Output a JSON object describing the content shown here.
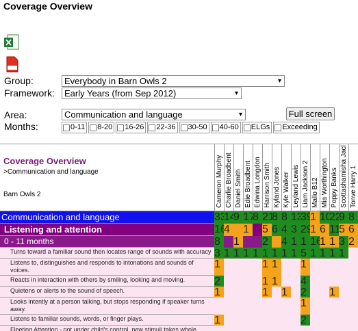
{
  "header": {
    "title": "Coverage Overview"
  },
  "form": {
    "group_label": "Group:",
    "group_value": "Everybody in Barn Owls 2",
    "framework_label": "Framework:",
    "framework_value": "Early Years (from Sep 2012)",
    "area_label": "Area:",
    "area_value": "Communication and language",
    "full_screen": "Full screen",
    "months_label": "Months:",
    "months": [
      "0-11",
      "8-20",
      "16-26",
      "22-36",
      "30-50",
      "40-60",
      "ELGs",
      "Exceeding"
    ]
  },
  "report": {
    "title": "Coverage Overview",
    "breadcrumb": ">Communication and language",
    "group": "Barn Owls 2",
    "children": [
      "Cameron Murphy",
      "Charlie Broadbent",
      "Daniel Smith",
      "Edie Broadbent",
      "Edwina Longdon",
      "Harrison Smith",
      "Kyland Jones",
      "Kyle Walker",
      "Leyland Lewis",
      "Liam Jackson 2",
      "Mallo B12",
      "Mia Worthington",
      "Poppy Banks",
      "Scottashamisha Jacks",
      "Tonve Harry 1"
    ],
    "rows": [
      {
        "label": "Communication and language",
        "style": "area",
        "background": "#1010f0",
        "values": [
          33,
          14,
          9,
          17,
          8,
          21,
          8,
          8,
          13,
          39,
          1,
          10,
          22,
          9,
          8
        ],
        "colors": [
          "#1e8c1e",
          "#1e8c1e",
          "#1e8c1e",
          "#1e8c1e",
          "#1e8c1e",
          "#1e8c1e",
          "#1e8c1e",
          "#1e8c1e",
          "#1e8c1e",
          "#1e8c1e",
          "#f5a31a",
          "#1e8c1e",
          "#1e8c1e",
          "#1e8c1e",
          "#1e8c1e"
        ]
      },
      {
        "label": "Listening and attention",
        "style": "aspect",
        "background": "#800080",
        "values": [
          16,
          4,
          null,
          1,
          null,
          5,
          6,
          4,
          3,
          29,
          1,
          6,
          11,
          5,
          6
        ],
        "colors": [
          "#1e8c1e",
          "#f5a31a",
          "#f5a31a",
          "#f5a31a",
          null,
          "#f5a31a",
          "#1e8c1e",
          "#1e8c1e",
          "#1e8c1e",
          "#1e8c1e",
          "#f5a31a",
          "#f5a31a",
          "#1e8c1e",
          "#f5a31a",
          "#f5a31a"
        ]
      },
      {
        "label": "0 - 11 months",
        "style": "band",
        "background": "#8a1a8a",
        "values": [
          8,
          null,
          1,
          null,
          null,
          2,
          null,
          4,
          1,
          1,
          16,
          1,
          1,
          3,
          2
        ],
        "colors": [
          "#1e8c1e",
          null,
          "#f5a31a",
          null,
          null,
          "#1e8c1e",
          "#f5a31a",
          "#1e8c1e",
          "#1e8c1e",
          "#1e8c1e",
          "#1e8c1e",
          "#f5a31a",
          "#f5a31a",
          "#1e8c1e",
          "#f5a31a"
        ]
      },
      {
        "label": "Turns toward a familiar sound then locates range of sounds with accuracy",
        "style": "statement",
        "background": "#fde4f1",
        "values": [
          3,
          1,
          1,
          1,
          1,
          1,
          1,
          1,
          1,
          5,
          1,
          1,
          1,
          1,
          null
        ],
        "colors": [
          "#1e8c1e",
          "#1e8c1e",
          "#1e8c1e",
          "#1e8c1e",
          "#1e8c1e",
          "#1e8c1e",
          "#1e8c1e",
          "#1e8c1e",
          "#1e8c1e",
          "#1e8c1e",
          "#1e8c1e",
          "#1e8c1e",
          "#1e8c1e",
          "#1e8c1e",
          null
        ]
      },
      {
        "label": "Listens to, distinguishes and responds to intonations and sounds of voices.",
        "style": "statement",
        "background": "#fde4f1",
        "values": [
          1,
          null,
          null,
          null,
          null,
          1,
          1,
          null,
          null,
          1,
          null,
          null,
          null,
          null,
          null
        ],
        "colors": [
          "#f5a31a",
          null,
          null,
          null,
          null,
          "#f5a31a",
          "#f5a31a",
          null,
          null,
          "#f5a31a",
          null,
          null,
          null,
          null,
          null
        ]
      },
      {
        "label": "Reacts in interaction with others by smiling, looking and moving.",
        "style": "statement",
        "background": "#fde4f1",
        "values": [
          2,
          null,
          null,
          null,
          null,
          1,
          1,
          null,
          null,
          4,
          null,
          null,
          null,
          null,
          null
        ],
        "colors": [
          "#1e8c1e",
          null,
          null,
          null,
          null,
          "#f5a31a",
          "#f5a31a",
          null,
          null,
          "#1e8c1e",
          null,
          null,
          null,
          null,
          null
        ]
      },
      {
        "label": "Quietens or alerts to the sound of speech.",
        "style": "statement",
        "background": "#fde4f1",
        "values": [
          1,
          null,
          null,
          null,
          null,
          1,
          null,
          1,
          null,
          2,
          null,
          null,
          1,
          null,
          null
        ],
        "colors": [
          "#f5a31a",
          null,
          null,
          null,
          null,
          "#f5a31a",
          null,
          "#f5a31a",
          null,
          "#1e8c1e",
          null,
          null,
          "#f5a31a",
          null,
          null
        ]
      },
      {
        "label": "Looks intently at a person talking, but stops responding if speaker turns away.",
        "style": "statement",
        "background": "#fde4f1",
        "values": [
          null,
          null,
          null,
          null,
          null,
          null,
          null,
          null,
          null,
          1,
          null,
          null,
          null,
          null,
          null
        ],
        "colors": [
          null,
          null,
          null,
          null,
          null,
          null,
          null,
          null,
          null,
          "#f5a31a",
          null,
          null,
          null,
          null,
          null
        ]
      },
      {
        "label": "Listens to familiar sounds, words, or finger plays.",
        "style": "statement",
        "background": "#fde4f1",
        "values": [
          1,
          null,
          null,
          null,
          null,
          null,
          null,
          null,
          null,
          2,
          null,
          null,
          null,
          null,
          null
        ],
        "colors": [
          "#f5a31a",
          null,
          null,
          null,
          null,
          null,
          null,
          null,
          null,
          "#1e8c1e",
          null,
          null,
          null,
          null,
          null
        ]
      },
      {
        "label": "Fleeting Attention - not under child's control, new stimuli takes whole attention.",
        "style": "statement",
        "background": "#fde4f1",
        "values": [
          null,
          null,
          null,
          null,
          null,
          null,
          null,
          null,
          null,
          null,
          null,
          null,
          null,
          null,
          null
        ],
        "colors": [
          null,
          null,
          null,
          null,
          null,
          null,
          null,
          null,
          null,
          null,
          null,
          null,
          null,
          null,
          null
        ]
      }
    ]
  }
}
